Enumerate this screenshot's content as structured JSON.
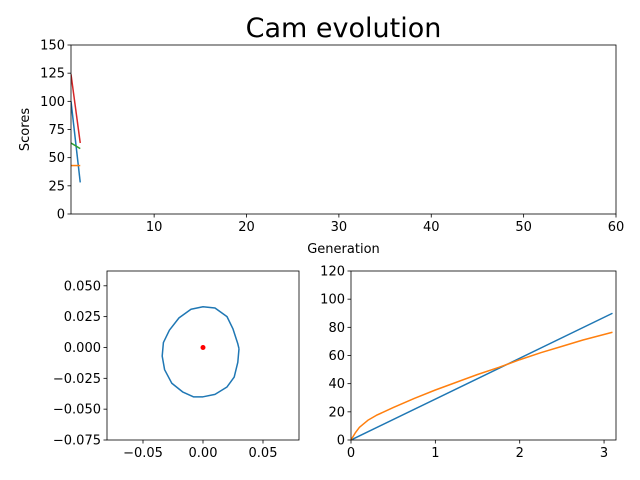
{
  "chart_data": [
    {
      "type": "line",
      "title": "Cam evolution",
      "xlabel": "Generation",
      "ylabel": "Scores",
      "xlim": [
        1,
        60
      ],
      "ylim": [
        0,
        150
      ],
      "xticks": [
        10,
        20,
        30,
        40,
        50,
        60
      ],
      "yticks": [
        0,
        25,
        50,
        75,
        100,
        125,
        150
      ],
      "grid": false,
      "x": [
        1,
        2
      ],
      "series": [
        {
          "color": "#1f77b4",
          "values": [
            100,
            28
          ]
        },
        {
          "color": "#ff7f0e",
          "values": [
            43,
            43
          ]
        },
        {
          "color": "#2ca02c",
          "values": [
            63,
            58
          ]
        },
        {
          "color": "#d62728",
          "values": [
            124,
            63
          ]
        }
      ]
    },
    {
      "type": "line",
      "title": "",
      "xlabel": "",
      "ylabel": "",
      "xlim": [
        -0.08,
        0.08
      ],
      "ylim": [
        -0.075,
        0.062
      ],
      "xticks": [
        -0.05,
        0.0,
        0.05
      ],
      "xtick_labels": [
        "−0.05",
        "0.00",
        "0.05"
      ],
      "yticks": [
        -0.075,
        -0.05,
        -0.025,
        0.0,
        0.025,
        0.05
      ],
      "ytick_labels": [
        "−0.075",
        "−0.050",
        "−0.025",
        "0.000",
        "0.025",
        "0.050"
      ],
      "grid": false,
      "series": [
        {
          "color": "#1f77b4",
          "x": [
            0.03,
            0.029,
            0.025,
            0.02,
            0.01,
            0.0,
            -0.01,
            -0.02,
            -0.028,
            -0.033,
            -0.034,
            -0.032,
            -0.026,
            -0.017,
            -0.008,
            0.0,
            0.01,
            0.02,
            0.026,
            0.029,
            0.03
          ],
          "y": [
            -0.001,
            0.003,
            0.015,
            0.025,
            0.032,
            0.033,
            0.031,
            0.024,
            0.014,
            0.004,
            -0.007,
            -0.018,
            -0.029,
            -0.036,
            -0.04,
            -0.04,
            -0.038,
            -0.032,
            -0.024,
            -0.012,
            -0.001
          ]
        },
        {
          "type": "scatter",
          "color": "#ff0000",
          "x": [
            0.0
          ],
          "y": [
            0.0
          ]
        }
      ]
    },
    {
      "type": "line",
      "title": "",
      "xlabel": "",
      "ylabel": "",
      "xlim": [
        0,
        3.1416
      ],
      "ylim": [
        0,
        120
      ],
      "xticks": [
        0,
        1,
        2,
        3
      ],
      "yticks": [
        0,
        20,
        40,
        60,
        80,
        100,
        120
      ],
      "grid": false,
      "series": [
        {
          "color": "#1f77b4",
          "x": [
            0,
            3.1
          ],
          "y": [
            0,
            90
          ]
        },
        {
          "color": "#ff7f0e",
          "x": [
            0,
            0.05,
            0.1,
            0.2,
            0.3,
            0.5,
            0.75,
            1.0,
            1.25,
            1.5,
            1.75,
            2.0,
            2.25,
            2.5,
            2.75,
            3.1
          ],
          "y": [
            0,
            5,
            9,
            14,
            17.5,
            23,
            29.5,
            35.5,
            41,
            46.5,
            51.5,
            57,
            62,
            66.5,
            71,
            76.5
          ]
        }
      ]
    }
  ]
}
